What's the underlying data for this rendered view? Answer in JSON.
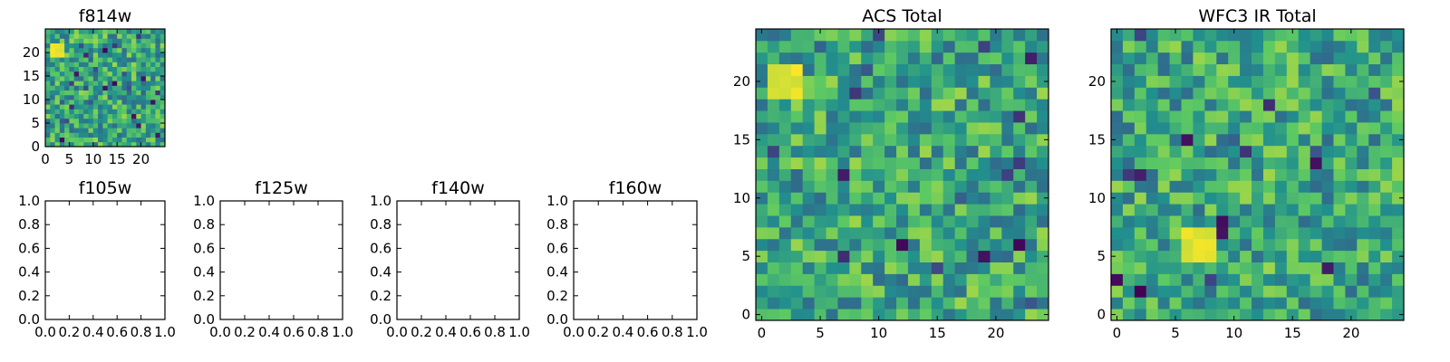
{
  "colormap": [
    "#440154",
    "#3b528b",
    "#21908d",
    "#5dc963",
    "#fde725"
  ],
  "chart_data": [
    {
      "id": "f814w",
      "type": "heatmap",
      "title": "f814w",
      "grid_size": 25,
      "xlim": [
        0,
        25
      ],
      "ylim": [
        0,
        25
      ],
      "xticks": [
        0,
        5,
        10,
        15,
        20
      ],
      "xtick_labels": [
        "0",
        "5",
        "10",
        "15",
        "20"
      ],
      "yticks": [
        0,
        5,
        10,
        15,
        20
      ],
      "ytick_labels": [
        "0",
        "5",
        "10",
        "15",
        "20"
      ],
      "value_range": [
        0,
        1
      ],
      "hotspot": {
        "x": 2,
        "y": 20,
        "value": 1.0
      },
      "seed": 814
    },
    {
      "id": "f105w",
      "type": "empty",
      "title": "f105w",
      "xlim": [
        0,
        1
      ],
      "ylim": [
        0,
        1
      ],
      "xtick_labels": [
        "0.0",
        "0.2",
        "0.4",
        "0.6",
        "0.8",
        "1.0"
      ],
      "ytick_labels": [
        "0.0",
        "0.2",
        "0.4",
        "0.6",
        "0.8",
        "1.0"
      ]
    },
    {
      "id": "f125w",
      "type": "empty",
      "title": "f125w",
      "xlim": [
        0,
        1
      ],
      "ylim": [
        0,
        1
      ],
      "xtick_labels": [
        "0.0",
        "0.2",
        "0.4",
        "0.6",
        "0.8",
        "1.0"
      ],
      "ytick_labels": [
        "0.0",
        "0.2",
        "0.4",
        "0.6",
        "0.8",
        "1.0"
      ]
    },
    {
      "id": "f140w",
      "type": "empty",
      "title": "f140w",
      "xlim": [
        0,
        1
      ],
      "ylim": [
        0,
        1
      ],
      "xtick_labels": [
        "0.0",
        "0.2",
        "0.4",
        "0.6",
        "0.8",
        "1.0"
      ],
      "ytick_labels": [
        "0.0",
        "0.2",
        "0.4",
        "0.6",
        "0.8",
        "1.0"
      ]
    },
    {
      "id": "f160w",
      "type": "empty",
      "title": "f160w",
      "xlim": [
        0,
        1
      ],
      "ylim": [
        0,
        1
      ],
      "xtick_labels": [
        "0.0",
        "0.2",
        "0.4",
        "0.6",
        "0.8",
        "1.0"
      ],
      "ytick_labels": [
        "0.0",
        "0.2",
        "0.4",
        "0.6",
        "0.8",
        "1.0"
      ]
    },
    {
      "id": "acs_total",
      "type": "heatmap",
      "title": "ACS Total",
      "grid_size": 25,
      "xlim": [
        -0.5,
        24.5
      ],
      "ylim": [
        -0.5,
        24.5
      ],
      "xticks": [
        0,
        5,
        10,
        15,
        20
      ],
      "xtick_labels": [
        "0",
        "5",
        "10",
        "15",
        "20"
      ],
      "yticks": [
        0,
        5,
        10,
        15,
        20
      ],
      "ytick_labels": [
        "0",
        "5",
        "10",
        "15",
        "20"
      ],
      "value_range": [
        0,
        1
      ],
      "hotspot": {
        "x": 2,
        "y": 20,
        "value": 1.0
      },
      "seed": 1234
    },
    {
      "id": "wfc3_ir_total",
      "type": "heatmap",
      "title": "WFC3 IR Total",
      "grid_size": 25,
      "xlim": [
        -0.5,
        24.5
      ],
      "ylim": [
        -0.5,
        24.5
      ],
      "xticks": [
        0,
        5,
        10,
        15,
        20
      ],
      "xtick_labels": [
        "0",
        "5",
        "10",
        "15",
        "20"
      ],
      "yticks": [
        0,
        5,
        10,
        15,
        20
      ],
      "ytick_labels": [
        "0",
        "5",
        "10",
        "15",
        "20"
      ],
      "value_range": [
        0,
        1
      ],
      "hotspot": {
        "x": 7,
        "y": 6,
        "value": 1.0
      },
      "seed": 4321
    }
  ]
}
